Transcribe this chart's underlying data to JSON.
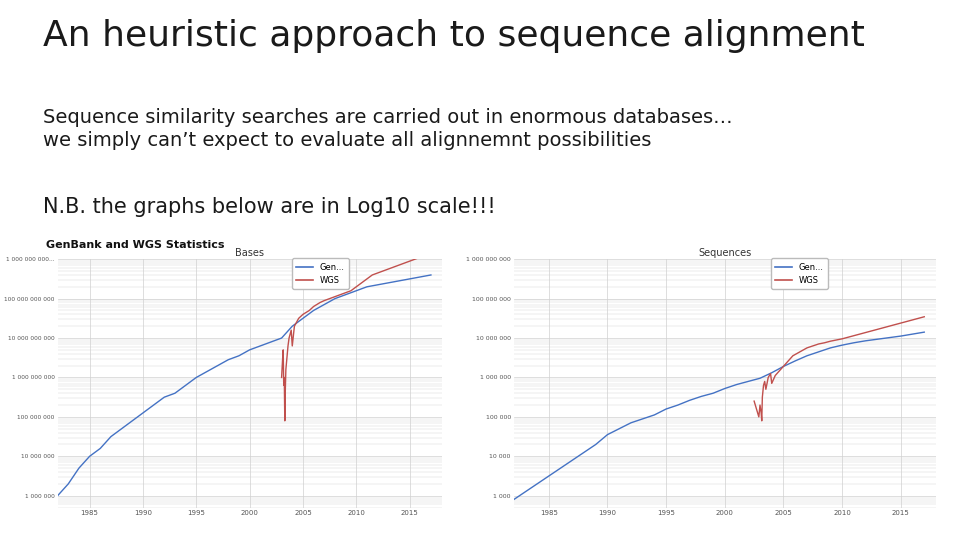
{
  "title": "An heuristic approach to sequence alignment",
  "subtitle1": "Sequence similarity searches are carried out in enormous databases…",
  "subtitle2": "we simply can’t expect to evaluate all alignnemnt possibilities",
  "nb_note": "N.B. the graphs below are in Log10 scale!!!",
  "genbank_label": "GenBank and WGS Statistics",
  "chart1_title": "Bases",
  "chart2_title": "Sequences",
  "legend_gen": "Gen...",
  "legend_wgs": "WGS",
  "bg_color": "#ffffff",
  "title_color": "#1a1a1a",
  "text_color": "#1a1a1a",
  "blue_color": "#4472c4",
  "red_color": "#c0504d",
  "grid_color": "#d0d0d0",
  "title_fontsize": 26,
  "body_fontsize": 14,
  "nb_fontsize": 15,
  "genbank_fontsize": 8,
  "chart_title_fontsize": 7,
  "tick_fontsize": 5,
  "legend_fontsize": 6,
  "years_gen": [
    1982,
    1983,
    1984,
    1985,
    1986,
    1987,
    1988,
    1989,
    1990,
    1991,
    1992,
    1993,
    1994,
    1995,
    1996,
    1997,
    1998,
    1999,
    2000,
    2001,
    2002,
    2003,
    2004,
    2005,
    2006,
    2007,
    2008,
    2009,
    2010,
    2011,
    2012,
    2013,
    2014,
    2015,
    2016,
    2017
  ],
  "bases_gen_log": [
    6.0,
    6.3,
    6.7,
    7.0,
    7.2,
    7.5,
    7.7,
    7.9,
    8.1,
    8.3,
    8.5,
    8.6,
    8.8,
    9.0,
    9.15,
    9.3,
    9.45,
    9.55,
    9.7,
    9.8,
    9.9,
    10.0,
    10.3,
    10.5,
    10.7,
    10.85,
    11.0,
    11.1,
    11.2,
    11.3,
    11.35,
    11.4,
    11.45,
    11.5,
    11.55,
    11.6
  ],
  "years_wgs_bases": [
    2003.0,
    2003.1,
    2003.15,
    2003.2,
    2003.25,
    2003.3,
    2003.35,
    2003.4,
    2003.5,
    2003.6,
    2003.7,
    2003.9,
    2004.0,
    2004.2,
    2004.4,
    2004.6,
    2004.8,
    2005.0,
    2005.3,
    2005.6,
    2005.8,
    2006.0,
    2006.3,
    2006.6,
    2007.0,
    2007.5,
    2008.0,
    2008.5,
    2009.0,
    2009.5,
    2010.0,
    2010.5,
    2011.0,
    2011.5,
    2012.0,
    2012.5,
    2013.0,
    2013.5,
    2014.0,
    2014.5,
    2015.0,
    2015.5,
    2016.0,
    2016.5,
    2017.0
  ],
  "wgs_bases_log": [
    9.0,
    9.5,
    9.7,
    8.8,
    9.0,
    7.9,
    8.7,
    9.2,
    9.5,
    9.8,
    10.0,
    10.2,
    9.8,
    10.3,
    10.4,
    10.5,
    10.55,
    10.6,
    10.65,
    10.7,
    10.75,
    10.8,
    10.85,
    10.9,
    10.95,
    11.0,
    11.05,
    11.1,
    11.15,
    11.2,
    11.3,
    11.4,
    11.5,
    11.6,
    11.65,
    11.7,
    11.75,
    11.8,
    11.85,
    11.9,
    11.95,
    12.0,
    12.05,
    12.08,
    12.1
  ],
  "seqs_gen_log": [
    2.9,
    3.1,
    3.3,
    3.5,
    3.7,
    3.9,
    4.1,
    4.3,
    4.55,
    4.7,
    4.85,
    4.95,
    5.05,
    5.2,
    5.3,
    5.42,
    5.52,
    5.6,
    5.72,
    5.82,
    5.9,
    5.98,
    6.12,
    6.28,
    6.42,
    6.55,
    6.65,
    6.75,
    6.82,
    6.88,
    6.93,
    6.97,
    7.01,
    7.05,
    7.1,
    7.15
  ],
  "years_wgs_seqs": [
    2002.5,
    2002.7,
    2002.9,
    2003.0,
    2003.1,
    2003.15,
    2003.2,
    2003.3,
    2003.4,
    2003.5,
    2003.6,
    2003.7,
    2003.9,
    2004.0,
    2004.3,
    2004.6,
    2004.9,
    2005.2,
    2005.5,
    2005.8,
    2006.1,
    2006.4,
    2006.7,
    2007.0,
    2007.5,
    2008.0,
    2008.5,
    2009.0,
    2009.5,
    2010.0,
    2010.5,
    2011.0,
    2011.5,
    2012.0,
    2012.5,
    2013.0,
    2013.5,
    2014.0,
    2014.5,
    2015.0,
    2015.5,
    2016.0,
    2016.5,
    2017.0
  ],
  "wgs_seqs_log": [
    5.4,
    5.2,
    5.0,
    5.3,
    5.1,
    4.9,
    5.5,
    5.8,
    5.9,
    5.7,
    5.85,
    6.0,
    6.1,
    5.85,
    6.05,
    6.15,
    6.25,
    6.35,
    6.45,
    6.55,
    6.6,
    6.65,
    6.7,
    6.75,
    6.8,
    6.85,
    6.88,
    6.92,
    6.95,
    6.98,
    7.02,
    7.06,
    7.1,
    7.14,
    7.18,
    7.22,
    7.26,
    7.3,
    7.34,
    7.38,
    7.42,
    7.46,
    7.5,
    7.54
  ],
  "bases_yticks": [
    1000000,
    10000000,
    100000000,
    1000000000,
    10000000000,
    100000000000,
    1000000000000
  ],
  "bases_ylabels": [
    "1 000 000",
    "10 000 000",
    "100 000 000",
    "1 000 000 000",
    "10 000 000 000",
    "100 000 000 000",
    "1 000 000 000..."
  ],
  "seqs_yticks": [
    1000,
    10000,
    100000,
    1000000,
    10000000,
    100000000,
    1000000000
  ],
  "seqs_ylabels": [
    "1 000",
    "10 000",
    "100 000",
    "1 000 000",
    "10 000 000",
    "100 000 000",
    "1 000 000 000"
  ]
}
